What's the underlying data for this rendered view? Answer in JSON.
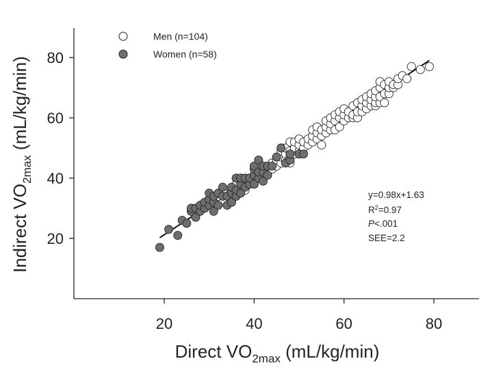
{
  "chart_data": {
    "type": "scatter",
    "xlabel": {
      "prefix": "Direct VO",
      "sub": "2max",
      "suffix": " (mL/kg/min)"
    },
    "ylabel": {
      "prefix": "Indirect VO",
      "sub": "2max",
      "suffix": " (mL/kg/min)"
    },
    "xlim": [
      0,
      90
    ],
    "ylim": [
      0,
      90
    ],
    "xticks": [
      20,
      40,
      60,
      80
    ],
    "yticks": [
      20,
      40,
      60,
      80
    ],
    "grid": false,
    "legend_position": "top-left",
    "colors": {
      "men_fill": "#ffffff",
      "women_fill": "#6e6e6e",
      "marker_stroke": "#222222",
      "line": "#111111"
    },
    "regression": {
      "slope": 0.98,
      "intercept": 1.63,
      "x_range": [
        19,
        79
      ]
    },
    "annotation": {
      "equation": "y=0.98x+1.63",
      "r2_prefix": "R",
      "r2_sup": "2",
      "r2_value": "=0.97",
      "p_italic": "P",
      "p_value": "<.001",
      "see": "SEE=2.2"
    },
    "series": [
      {
        "name": "Men (n=104)",
        "marker": "open-circle",
        "points": [
          [
            30,
            33
          ],
          [
            32,
            34
          ],
          [
            33,
            36
          ],
          [
            35,
            36
          ],
          [
            36,
            38
          ],
          [
            37,
            37
          ],
          [
            38,
            36
          ],
          [
            39,
            39
          ],
          [
            40,
            38
          ],
          [
            40,
            40
          ],
          [
            41,
            40
          ],
          [
            41,
            42
          ],
          [
            42,
            41
          ],
          [
            42,
            43
          ],
          [
            43,
            42
          ],
          [
            43,
            44
          ],
          [
            44,
            43
          ],
          [
            44,
            45
          ],
          [
            45,
            44
          ],
          [
            45,
            46
          ],
          [
            46,
            45
          ],
          [
            46,
            47
          ],
          [
            46,
            49
          ],
          [
            47,
            46
          ],
          [
            47,
            48
          ],
          [
            47,
            50
          ],
          [
            48,
            45
          ],
          [
            48,
            47
          ],
          [
            48,
            49
          ],
          [
            48,
            52
          ],
          [
            49,
            48
          ],
          [
            49,
            50
          ],
          [
            49,
            52
          ],
          [
            50,
            49
          ],
          [
            50,
            51
          ],
          [
            50,
            53
          ],
          [
            51,
            50
          ],
          [
            51,
            52
          ],
          [
            52,
            51
          ],
          [
            52,
            53
          ],
          [
            53,
            52
          ],
          [
            53,
            54
          ],
          [
            53,
            56
          ],
          [
            54,
            53
          ],
          [
            54,
            55
          ],
          [
            54,
            57
          ],
          [
            55,
            51
          ],
          [
            55,
            54
          ],
          [
            55,
            56
          ],
          [
            56,
            55
          ],
          [
            56,
            57
          ],
          [
            56,
            59
          ],
          [
            57,
            56
          ],
          [
            57,
            58
          ],
          [
            57,
            60
          ],
          [
            58,
            56
          ],
          [
            58,
            59
          ],
          [
            58,
            61
          ],
          [
            59,
            57
          ],
          [
            59,
            60
          ],
          [
            59,
            62
          ],
          [
            60,
            59
          ],
          [
            60,
            61
          ],
          [
            60,
            63
          ],
          [
            61,
            60
          ],
          [
            61,
            62
          ],
          [
            62,
            60
          ],
          [
            62,
            61
          ],
          [
            62,
            64
          ],
          [
            63,
            60
          ],
          [
            63,
            62
          ],
          [
            63,
            65
          ],
          [
            64,
            62
          ],
          [
            64,
            64
          ],
          [
            64,
            66
          ],
          [
            65,
            63
          ],
          [
            65,
            65
          ],
          [
            65,
            67
          ],
          [
            66,
            64
          ],
          [
            66,
            66
          ],
          [
            66,
            68
          ],
          [
            67,
            64
          ],
          [
            67,
            65
          ],
          [
            67,
            67
          ],
          [
            67,
            69
          ],
          [
            68,
            65
          ],
          [
            68,
            67
          ],
          [
            68,
            70
          ],
          [
            68,
            72
          ],
          [
            69,
            65
          ],
          [
            69,
            68
          ],
          [
            69,
            71
          ],
          [
            70,
            68
          ],
          [
            70,
            70
          ],
          [
            70,
            72
          ],
          [
            71,
            70
          ],
          [
            71,
            71
          ],
          [
            72,
            71
          ],
          [
            72,
            73
          ],
          [
            73,
            74
          ],
          [
            74,
            73
          ],
          [
            75,
            77
          ],
          [
            77,
            76
          ],
          [
            79,
            77
          ]
        ]
      },
      {
        "name": "Women (n=58)",
        "marker": "filled-circle",
        "points": [
          [
            19,
            17
          ],
          [
            21,
            23
          ],
          [
            23,
            21
          ],
          [
            24,
            26
          ],
          [
            25,
            25
          ],
          [
            26,
            29
          ],
          [
            26,
            30
          ],
          [
            27,
            27
          ],
          [
            27,
            30
          ],
          [
            28,
            29
          ],
          [
            28,
            31
          ],
          [
            29,
            30
          ],
          [
            29,
            32
          ],
          [
            30,
            31
          ],
          [
            30,
            33
          ],
          [
            30,
            35
          ],
          [
            31,
            29
          ],
          [
            31,
            32
          ],
          [
            31,
            34
          ],
          [
            32,
            31
          ],
          [
            32,
            35
          ],
          [
            33,
            34
          ],
          [
            33,
            37
          ],
          [
            34,
            31
          ],
          [
            34,
            34
          ],
          [
            35,
            32
          ],
          [
            35,
            35
          ],
          [
            35,
            37
          ],
          [
            36,
            34
          ],
          [
            36,
            36
          ],
          [
            36,
            40
          ],
          [
            37,
            35
          ],
          [
            37,
            38
          ],
          [
            37,
            40
          ],
          [
            38,
            37
          ],
          [
            38,
            40
          ],
          [
            39,
            38
          ],
          [
            39,
            40
          ],
          [
            40,
            38
          ],
          [
            40,
            41
          ],
          [
            40,
            43
          ],
          [
            40,
            44
          ],
          [
            41,
            40
          ],
          [
            41,
            42
          ],
          [
            41,
            46
          ],
          [
            42,
            39
          ],
          [
            42,
            42
          ],
          [
            42,
            44
          ],
          [
            43,
            41
          ],
          [
            43,
            44
          ],
          [
            44,
            44
          ],
          [
            45,
            47
          ],
          [
            46,
            50
          ],
          [
            47,
            45
          ],
          [
            48,
            46
          ],
          [
            48,
            48
          ],
          [
            50,
            48
          ],
          [
            51,
            48
          ]
        ]
      }
    ]
  }
}
